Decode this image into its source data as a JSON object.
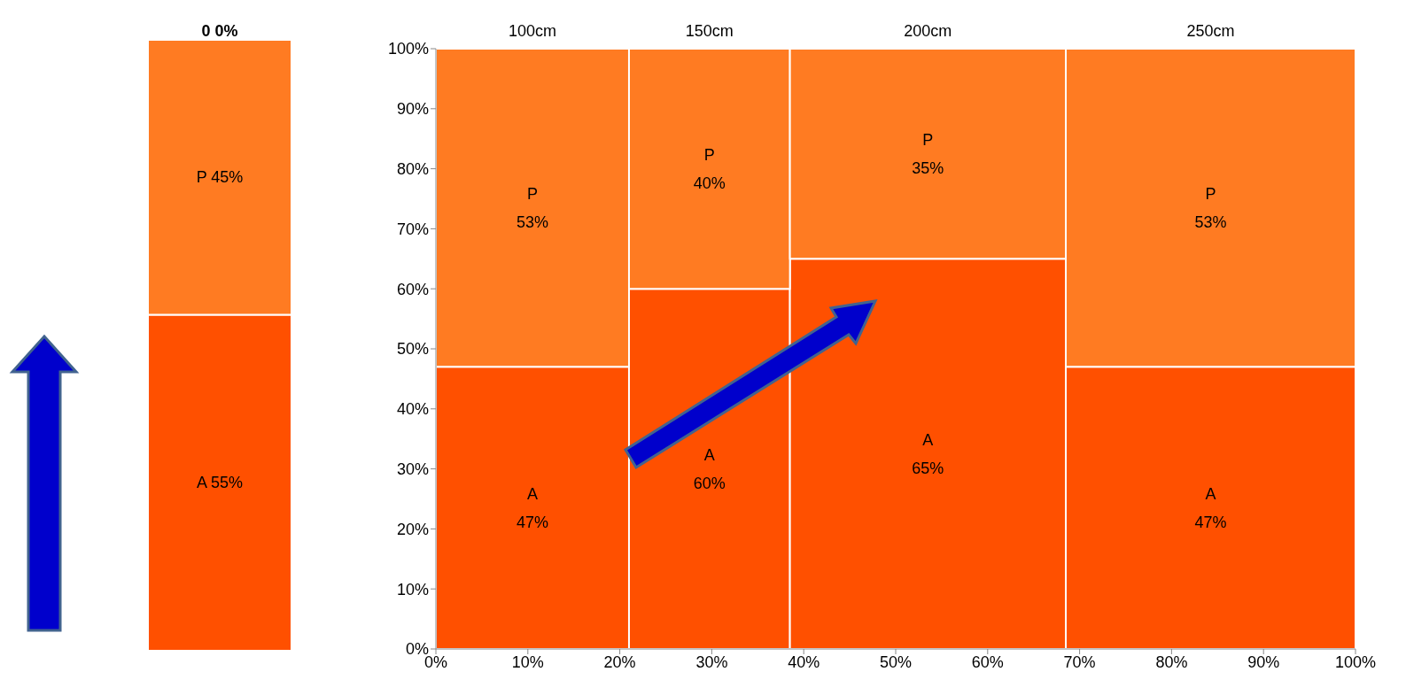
{
  "chart_data": [
    {
      "type": "bar",
      "stacked": true,
      "categories": [
        null
      ],
      "series": [
        {
          "color": "#ff5000",
          "values": [
            55
          ],
          "value_labels": [
            "A 55%"
          ]
        },
        {
          "color": "#ff7b22",
          "values": [
            45
          ],
          "value_labels": [
            "P 45%"
          ]
        },
        {
          "color": "#ff7b22",
          "values": [
            0
          ],
          "value_labels": [
            "0 0%"
          ]
        }
      ]
    },
    {
      "type": "bar",
      "stacked": true,
      "x": [
        10.5,
        29.75,
        53.5,
        84.25
      ],
      "annotations": [
        {
          "text": "100cm",
          "x": 10.5,
          "y": 100
        },
        {
          "text": "150cm",
          "x": 29.75,
          "y": 100
        },
        {
          "text": "200cm",
          "x": 53.5,
          "y": 100
        },
        {
          "text": "250cm",
          "x": 84.25,
          "y": 100
        }
      ],
      "xlim": [
        0,
        100
      ],
      "xticks": [
        {
          "value": 0,
          "label": "0%"
        },
        {
          "value": 10,
          "label": "10%"
        },
        {
          "value": 20,
          "label": "20%"
        },
        {
          "value": 30,
          "label": "30%"
        },
        {
          "value": 40,
          "label": "40%"
        },
        {
          "value": 50,
          "label": "50%"
        },
        {
          "value": 60,
          "label": "60%"
        },
        {
          "value": 70,
          "label": "70%"
        },
        {
          "value": 80,
          "label": "80%"
        },
        {
          "value": 90,
          "label": "90%"
        },
        {
          "value": 100,
          "label": "100%"
        }
      ],
      "ylim": [
        0,
        100
      ],
      "yticks": [
        {
          "value": 0,
          "label": "0%"
        },
        {
          "value": 10,
          "label": "10%"
        },
        {
          "value": 20,
          "label": "20%"
        },
        {
          "value": 30,
          "label": "30%"
        },
        {
          "value": 40,
          "label": "40%"
        },
        {
          "value": 50,
          "label": "50%"
        },
        {
          "value": 60,
          "label": "60%"
        },
        {
          "value": 70,
          "label": "70%"
        },
        {
          "value": 80,
          "label": "80%"
        },
        {
          "value": 90,
          "label": "90%"
        },
        {
          "value": 100,
          "label": "100%"
        }
      ],
      "series": [
        {
          "name": "A",
          "color": "#ff5000",
          "values": [
            47,
            60,
            65,
            47
          ],
          "value_labels": [
            "47%",
            "60%",
            "65%",
            "47%"
          ]
        },
        {
          "name": "P",
          "color": "#ff7b22",
          "values": [
            53,
            40,
            35,
            53
          ],
          "value_labels": [
            "53%",
            "40%",
            "35%",
            "53%"
          ]
        }
      ]
    }
  ]
}
